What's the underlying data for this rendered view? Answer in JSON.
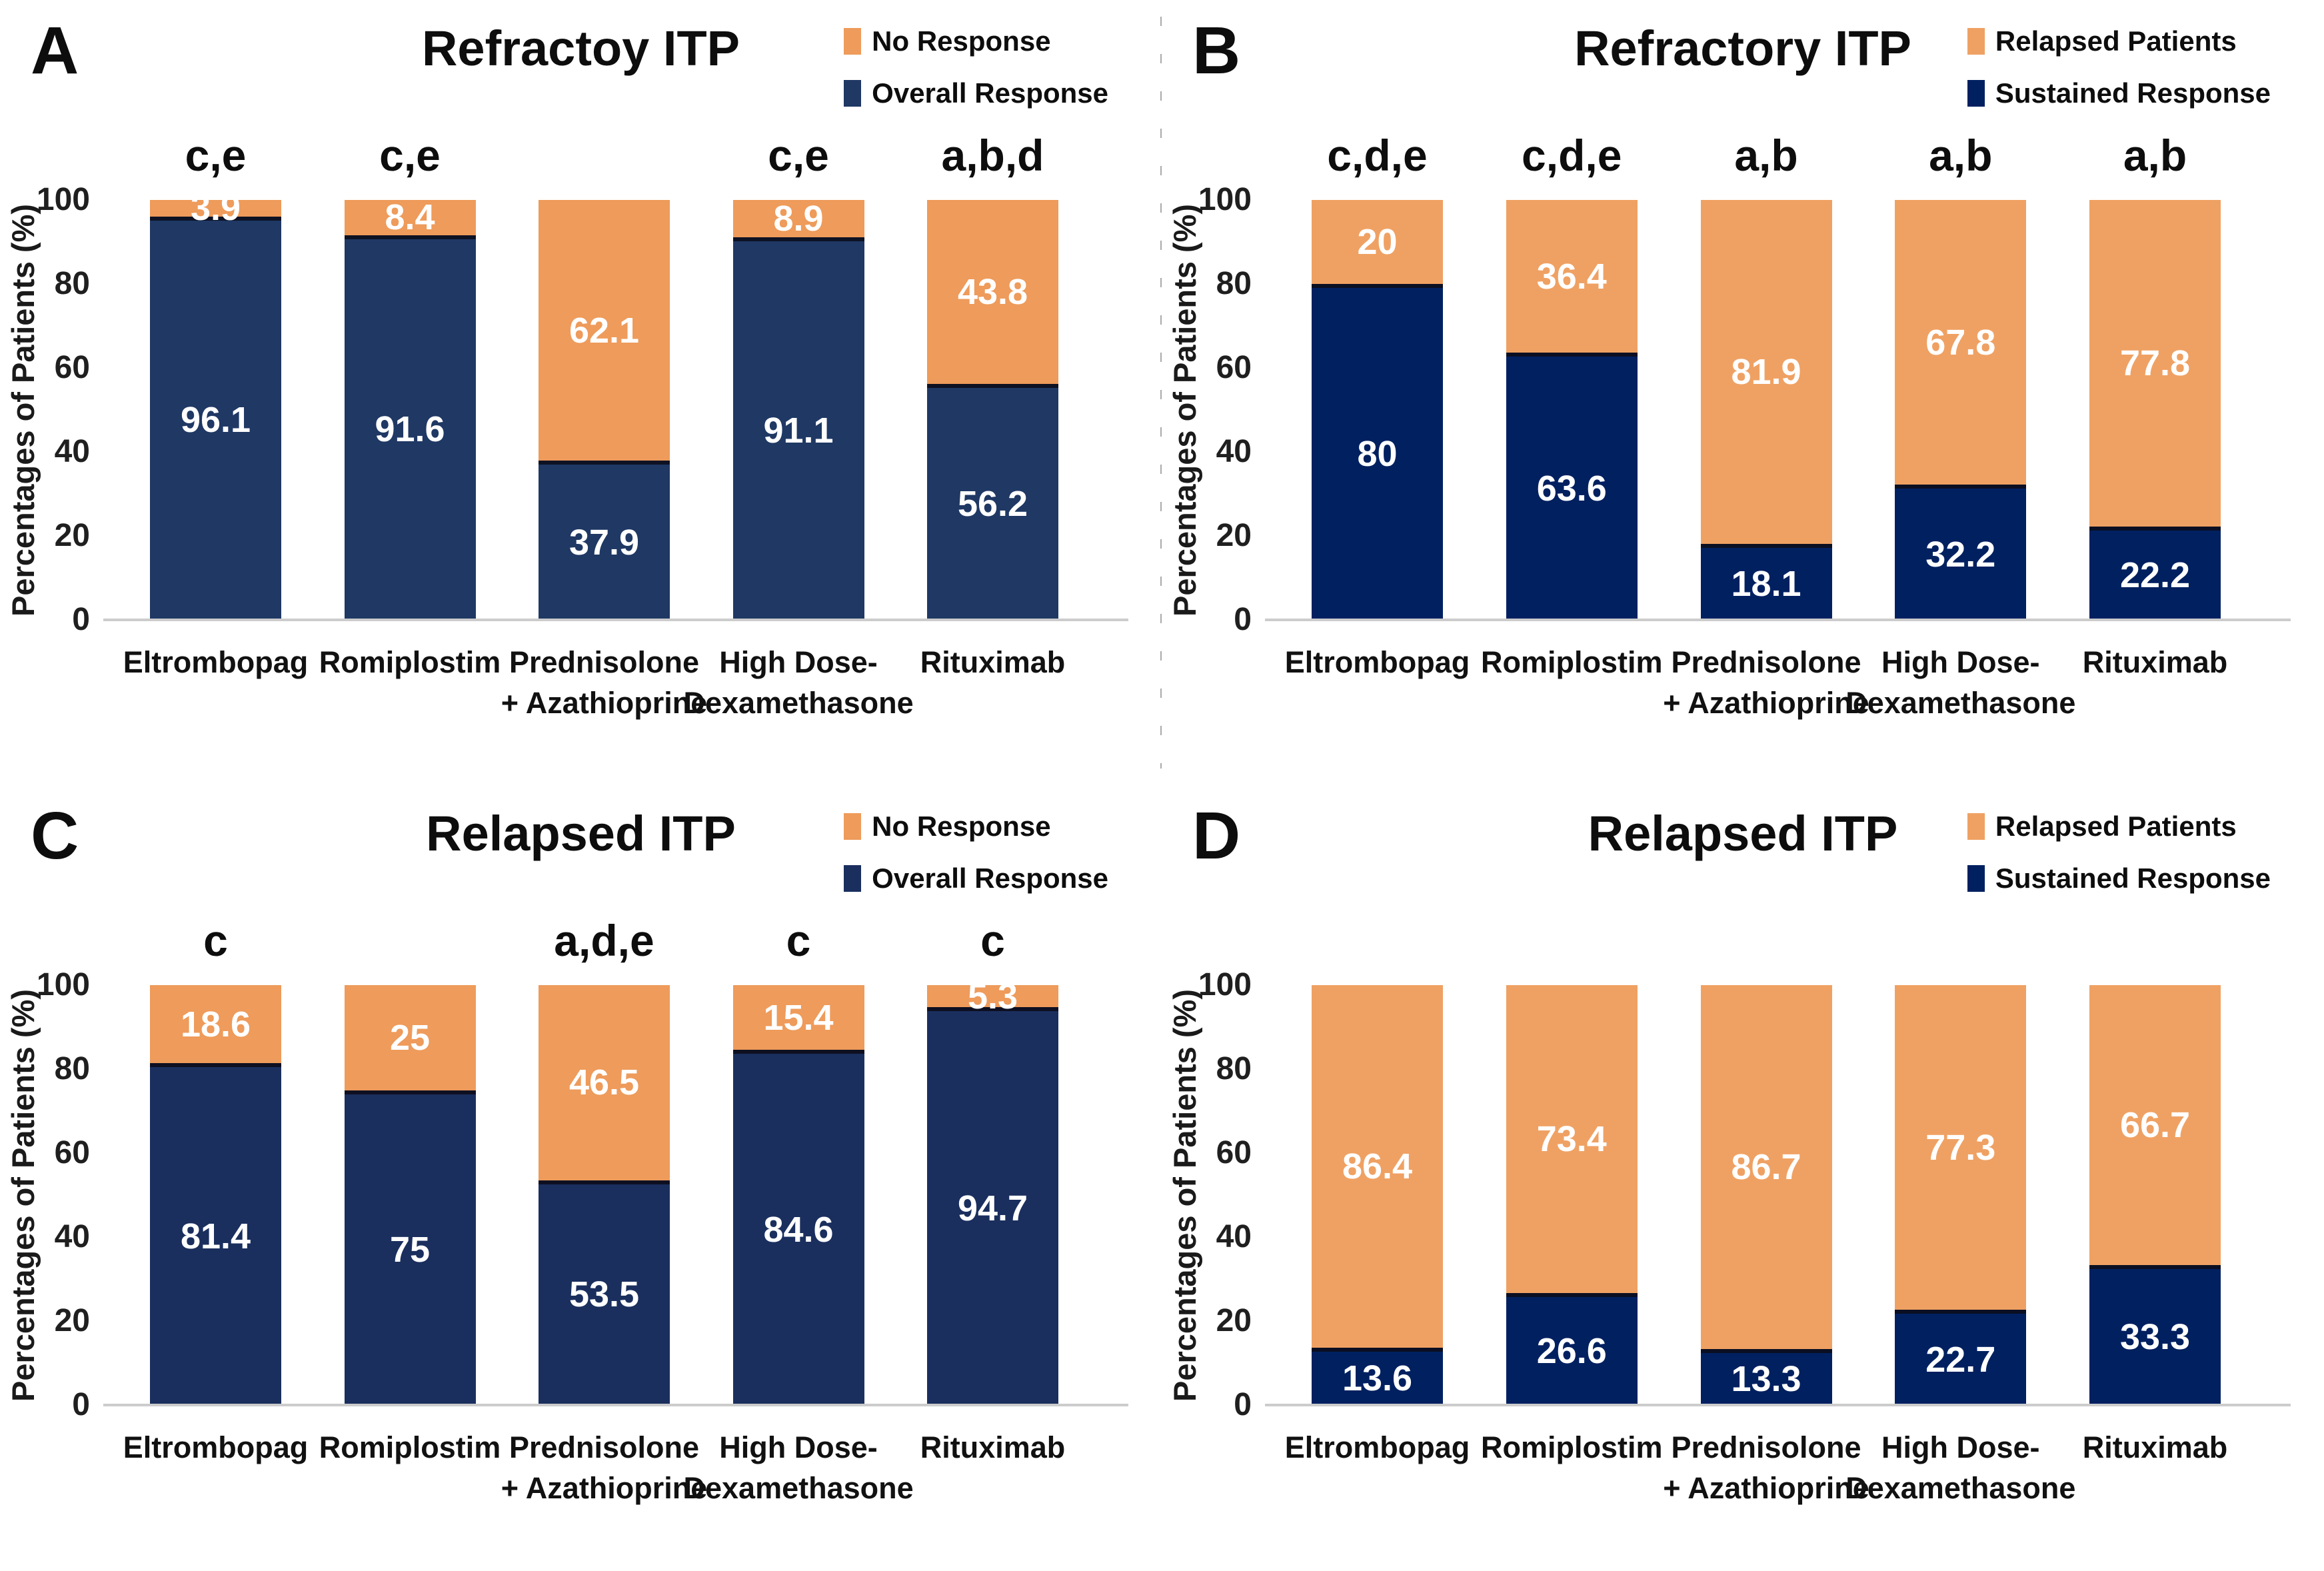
{
  "figure": {
    "ylabel": "Percentages of Patients (%)",
    "ylim": [
      0,
      100
    ],
    "yticks": [
      100,
      80,
      60,
      40,
      20,
      0
    ]
  },
  "chart_data": [
    {
      "type": "bar",
      "stacked": true,
      "panel": "A",
      "title": "Refractoy ITP",
      "ylabel": "Percentages of Patients (%)",
      "ylim": [
        0,
        100
      ],
      "yticks": [
        100,
        80,
        60,
        40,
        20,
        0
      ],
      "grid": false,
      "legend_position": "top-right",
      "categories": [
        "Eltrombopag",
        "Romiplostim",
        "Prednisolone\n+ Azathioprine",
        "High Dose-\nDexamethasone",
        "Rituximab"
      ],
      "legend": [
        {
          "name": "No Response",
          "color": "#EE9B5B"
        },
        {
          "name": "Overall Response",
          "color": "#1F3864"
        }
      ],
      "series": [
        {
          "name": "Overall Response",
          "color": "#1F3864",
          "values": [
            96.1,
            91.6,
            37.9,
            91.1,
            56.2
          ]
        },
        {
          "name": "No Response",
          "color": "#EE9B5B",
          "values": [
            3.9,
            8.4,
            62.1,
            8.9,
            43.8
          ]
        }
      ],
      "annotations": [
        "c,e",
        "c,e",
        "",
        "c,e",
        "a,b,d"
      ]
    },
    {
      "type": "bar",
      "stacked": true,
      "panel": "B",
      "title": "Refractory ITP",
      "ylabel": "Percentages of Patients (%)",
      "ylim": [
        0,
        100
      ],
      "yticks": [
        100,
        80,
        60,
        40,
        20,
        0
      ],
      "grid": false,
      "legend_position": "top-right",
      "categories": [
        "Eltrombopag",
        "Romiplostim",
        "Prednisolone\n+ Azathioprine",
        "High Dose-\nDexamethasone",
        "Rituximab"
      ],
      "legend": [
        {
          "name": "Relapsed Patients",
          "color": "#EFA163"
        },
        {
          "name": "Sustained Response",
          "color": "#002060"
        }
      ],
      "series": [
        {
          "name": "Sustained Response",
          "color": "#002060",
          "values": [
            80,
            63.6,
            18.1,
            32.2,
            22.2
          ]
        },
        {
          "name": "Relapsed Patients",
          "color": "#EFA163",
          "values": [
            20,
            36.4,
            81.9,
            67.8,
            77.8
          ]
        }
      ],
      "annotations": [
        "c,d,e",
        "c,d,e",
        "a,b",
        "a,b",
        "a,b"
      ]
    },
    {
      "type": "bar",
      "stacked": true,
      "panel": "C",
      "title": "Relapsed ITP",
      "ylabel": "Percentages of Patients (%)",
      "ylim": [
        0,
        100
      ],
      "yticks": [
        100,
        80,
        60,
        40,
        20,
        0
      ],
      "grid": false,
      "legend_position": "top-right",
      "categories": [
        "Eltrombopag",
        "Romiplostim",
        "Prednisolone\n+ Azathioprine",
        "High Dose-\nDexamethasone",
        "Rituximab"
      ],
      "legend": [
        {
          "name": "No Response",
          "color": "#EE9B5B"
        },
        {
          "name": "Overall Response",
          "color": "#1A2F5E"
        }
      ],
      "series": [
        {
          "name": "Overall Response",
          "color": "#1A2F5E",
          "values": [
            81.4,
            75,
            53.5,
            84.6,
            94.7
          ]
        },
        {
          "name": "No Response",
          "color": "#EE9B5B",
          "values": [
            18.6,
            25,
            46.5,
            15.4,
            5.3
          ]
        }
      ],
      "annotations": [
        "c",
        "",
        "a,d,e",
        "c",
        "c"
      ]
    },
    {
      "type": "bar",
      "stacked": true,
      "panel": "D",
      "title": "Relapsed ITP",
      "ylabel": "Percentages of Patients (%)",
      "ylim": [
        0,
        100
      ],
      "yticks": [
        100,
        80,
        60,
        40,
        20,
        0
      ],
      "grid": false,
      "legend_position": "top-right",
      "categories": [
        "Eltrombopag",
        "Romiplostim",
        "Prednisolone\n+ Azathioprine",
        "High Dose-\nDexamethasone",
        "Rituximab"
      ],
      "legend": [
        {
          "name": "Relapsed Patients",
          "color": "#EFA163"
        },
        {
          "name": "Sustained Response",
          "color": "#002060"
        }
      ],
      "series": [
        {
          "name": "Sustained Response",
          "color": "#002060",
          "values": [
            13.6,
            26.6,
            13.3,
            22.7,
            33.3
          ]
        },
        {
          "name": "Relapsed Patients",
          "color": "#EFA163",
          "values": [
            86.4,
            73.4,
            86.7,
            77.3,
            66.7
          ]
        }
      ],
      "annotations": [
        "",
        "",
        "",
        "",
        ""
      ]
    }
  ]
}
